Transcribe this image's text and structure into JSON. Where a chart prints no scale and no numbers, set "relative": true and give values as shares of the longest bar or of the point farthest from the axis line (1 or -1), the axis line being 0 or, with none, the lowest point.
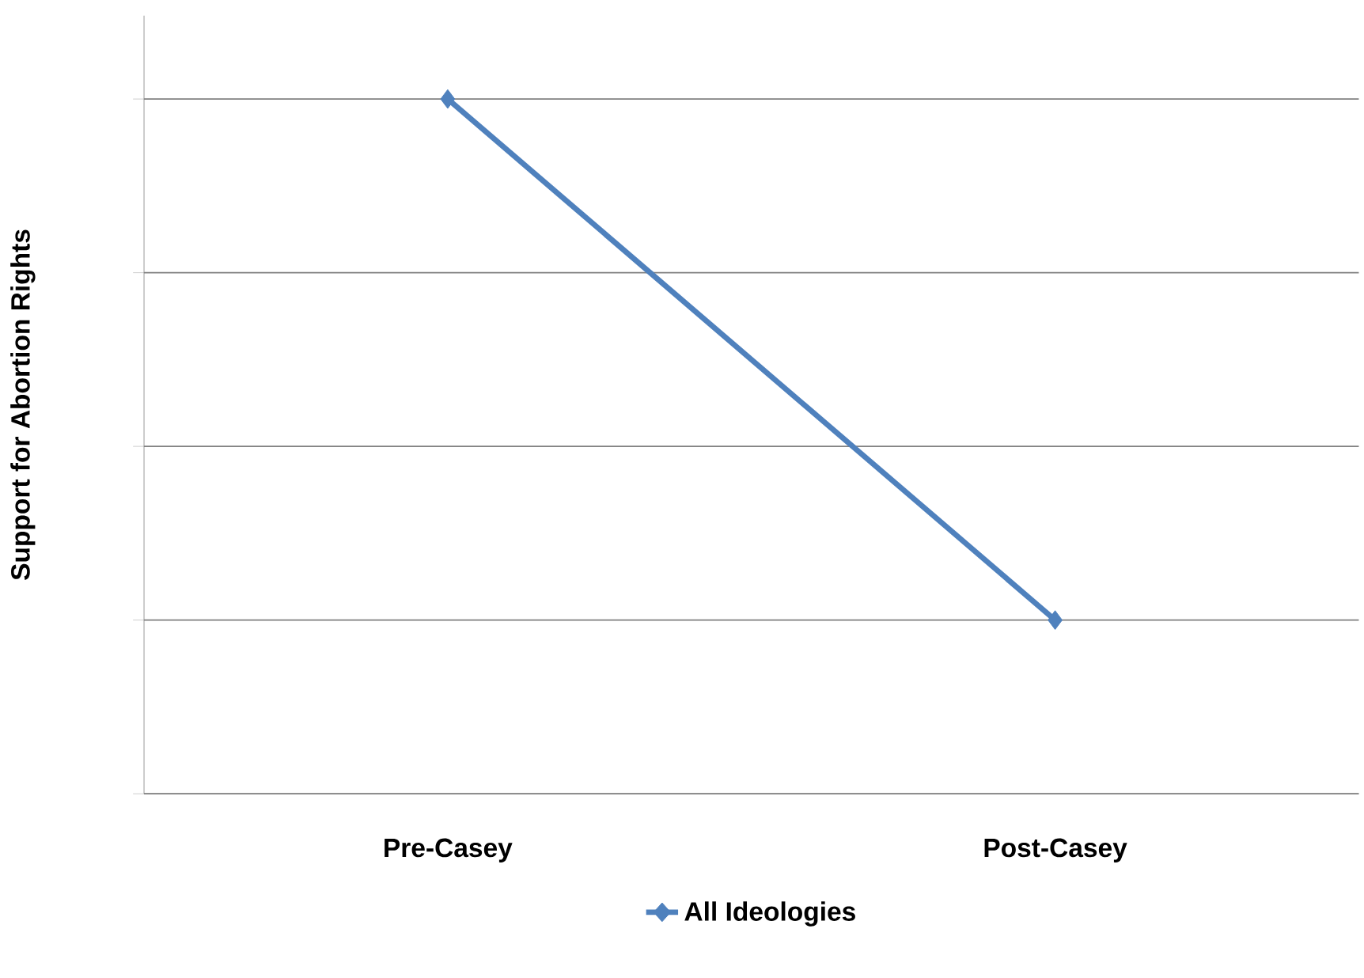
{
  "chart_data": {
    "type": "line",
    "ylabel": "Support for Abortion Rights",
    "categories": [
      "Pre-Casey",
      "Post-Casey"
    ],
    "series": [
      {
        "name": "All Ideologies",
        "color": "#4f81bd",
        "values": [
          1,
          0.25
        ]
      }
    ],
    "relative": true,
    "grid": "y",
    "legend": "bottom",
    "marker": "diamond",
    "line_style": "solid"
  }
}
